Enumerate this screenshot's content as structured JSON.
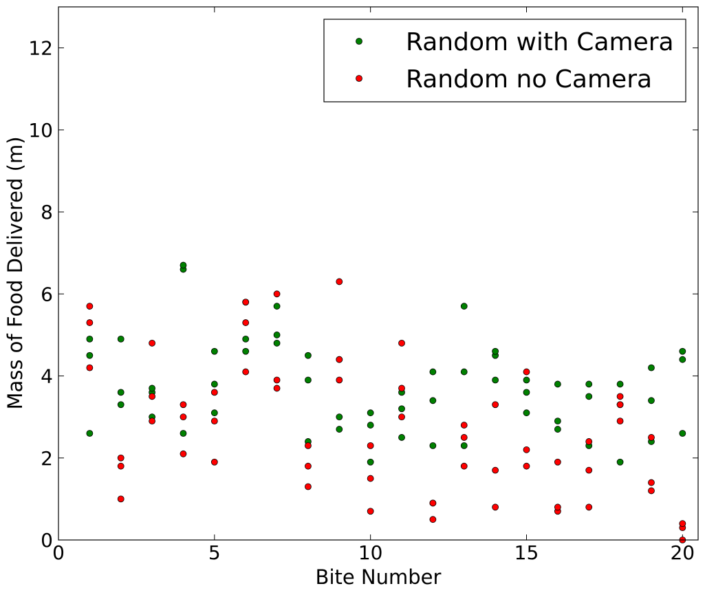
{
  "chart_data": {
    "type": "scatter",
    "xlabel": "Bite Number",
    "ylabel": "Mass of Food Delivered (m)",
    "xlim": [
      0,
      20.5
    ],
    "ylim": [
      0,
      13
    ],
    "x_ticks": [
      0,
      5,
      10,
      15,
      20
    ],
    "y_ticks": [
      0,
      2,
      4,
      6,
      8,
      10,
      12
    ],
    "grid": false,
    "legend_position": "top-right",
    "series": [
      {
        "name": "Random with Camera",
        "color": "#008000",
        "points": [
          [
            1,
            2.6
          ],
          [
            1,
            4.5
          ],
          [
            1,
            4.9
          ],
          [
            2,
            3.3
          ],
          [
            2,
            3.6
          ],
          [
            2,
            4.9
          ],
          [
            3,
            3.0
          ],
          [
            3,
            3.6
          ],
          [
            3,
            3.7
          ],
          [
            4,
            2.6
          ],
          [
            4,
            6.6
          ],
          [
            4,
            6.7
          ],
          [
            5,
            3.1
          ],
          [
            5,
            3.8
          ],
          [
            5,
            4.6
          ],
          [
            6,
            4.6
          ],
          [
            6,
            4.9
          ],
          [
            6,
            5.8
          ],
          [
            7,
            4.8
          ],
          [
            7,
            5.0
          ],
          [
            7,
            5.7
          ],
          [
            8,
            2.4
          ],
          [
            8,
            3.9
          ],
          [
            8,
            4.5
          ],
          [
            9,
            2.7
          ],
          [
            9,
            3.0
          ],
          [
            9,
            4.4
          ],
          [
            10,
            1.9
          ],
          [
            10,
            2.8
          ],
          [
            10,
            3.1
          ],
          [
            11,
            2.5
          ],
          [
            11,
            3.2
          ],
          [
            11,
            3.6
          ],
          [
            12,
            2.3
          ],
          [
            12,
            3.4
          ],
          [
            12,
            4.1
          ],
          [
            13,
            2.3
          ],
          [
            13,
            4.1
          ],
          [
            13,
            5.7
          ],
          [
            14,
            3.9
          ],
          [
            14,
            4.5
          ],
          [
            14,
            4.6
          ],
          [
            15,
            3.1
          ],
          [
            15,
            3.6
          ],
          [
            15,
            3.9
          ],
          [
            16,
            2.7
          ],
          [
            16,
            2.9
          ],
          [
            16,
            3.8
          ],
          [
            17,
            2.3
          ],
          [
            17,
            3.5
          ],
          [
            17,
            3.8
          ],
          [
            18,
            1.9
          ],
          [
            18,
            3.3
          ],
          [
            18,
            3.8
          ],
          [
            19,
            2.4
          ],
          [
            19,
            3.4
          ],
          [
            19,
            4.2
          ],
          [
            20,
            2.6
          ],
          [
            20,
            4.4
          ],
          [
            20,
            4.6
          ]
        ]
      },
      {
        "name": "Random no Camera",
        "color": "#ff0000",
        "points": [
          [
            1,
            4.2
          ],
          [
            1,
            5.3
          ],
          [
            1,
            5.7
          ],
          [
            2,
            1.0
          ],
          [
            2,
            1.8
          ],
          [
            2,
            2.0
          ],
          [
            3,
            2.9
          ],
          [
            3,
            3.5
          ],
          [
            3,
            4.8
          ],
          [
            4,
            2.1
          ],
          [
            4,
            3.0
          ],
          [
            4,
            3.3
          ],
          [
            5,
            1.9
          ],
          [
            5,
            2.9
          ],
          [
            5,
            3.6
          ],
          [
            6,
            4.1
          ],
          [
            6,
            5.3
          ],
          [
            6,
            5.8
          ],
          [
            7,
            3.7
          ],
          [
            7,
            3.9
          ],
          [
            7,
            6.0
          ],
          [
            8,
            1.3
          ],
          [
            8,
            1.8
          ],
          [
            8,
            2.3
          ],
          [
            9,
            3.9
          ],
          [
            9,
            4.4
          ],
          [
            9,
            6.3
          ],
          [
            10,
            0.7
          ],
          [
            10,
            1.5
          ],
          [
            10,
            2.3
          ],
          [
            11,
            3.0
          ],
          [
            11,
            3.7
          ],
          [
            11,
            4.8
          ],
          [
            12,
            0.5
          ],
          [
            12,
            0.9
          ],
          [
            12,
            0.9
          ],
          [
            13,
            1.8
          ],
          [
            13,
            2.5
          ],
          [
            13,
            2.8
          ],
          [
            14,
            0.8
          ],
          [
            14,
            1.7
          ],
          [
            14,
            3.3
          ],
          [
            15,
            1.8
          ],
          [
            15,
            2.2
          ],
          [
            15,
            4.1
          ],
          [
            16,
            0.7
          ],
          [
            16,
            0.8
          ],
          [
            16,
            1.9
          ],
          [
            17,
            0.8
          ],
          [
            17,
            1.7
          ],
          [
            17,
            2.4
          ],
          [
            18,
            2.9
          ],
          [
            18,
            3.3
          ],
          [
            18,
            3.5
          ],
          [
            19,
            1.2
          ],
          [
            19,
            1.4
          ],
          [
            19,
            2.5
          ],
          [
            20,
            0.0
          ],
          [
            20,
            0.3
          ],
          [
            20,
            0.4
          ]
        ]
      }
    ]
  }
}
